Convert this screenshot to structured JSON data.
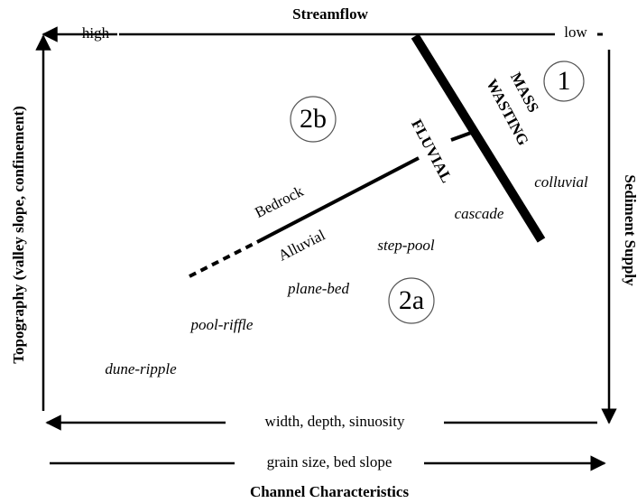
{
  "streamflow": {
    "title": "Streamflow",
    "high": "high",
    "low": "low"
  },
  "topography_axis": "Topography (valley slope, confinement)",
  "sediment_axis": "Sediment Supply",
  "bottom_arrows": {
    "width": "width, depth, sinuosity",
    "grain": "grain size, bed slope"
  },
  "channel_title": "Channel Characteristics",
  "zones": {
    "z1": "1",
    "z2b": "2b",
    "z2a": "2a"
  },
  "processes": {
    "mass": "MASS",
    "wasting": "WASTING",
    "fluvial": "FLUVIAL"
  },
  "substrate": {
    "bedrock": "Bedrock",
    "alluvial": "Alluvial"
  },
  "channel_types": [
    "colluvial",
    "cascade",
    "step-pool",
    "plane-bed",
    "pool-riffle",
    "dune-ripple"
  ]
}
